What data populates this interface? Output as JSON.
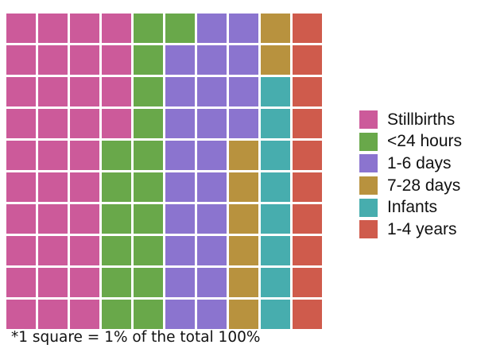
{
  "chart_data": {
    "type": "waffle",
    "grid": {
      "rows": 10,
      "cols": 10,
      "fill_order": "column-major, top-to-bottom, left-to-right"
    },
    "series": [
      {
        "name": "Stillbirths",
        "values": [
          34
        ],
        "color": "#cc5a9a"
      },
      {
        "name": "<24 hours",
        "values": [
          17
        ],
        "color": "#69a84a"
      },
      {
        "name": "1-6 days",
        "values": [
          23
        ],
        "color": "#8b74cf"
      },
      {
        "name": "7-28 days",
        "values": [
          8
        ],
        "color": "#b8923e"
      },
      {
        "name": "Infants",
        "values": [
          8
        ],
        "color": "#47adae"
      },
      {
        "name": "1-4 years",
        "values": [
          10
        ],
        "color": "#cf5b4c"
      }
    ],
    "legend": {
      "position": "right"
    },
    "footnote": "*1 square = 1% of the total 100%"
  }
}
